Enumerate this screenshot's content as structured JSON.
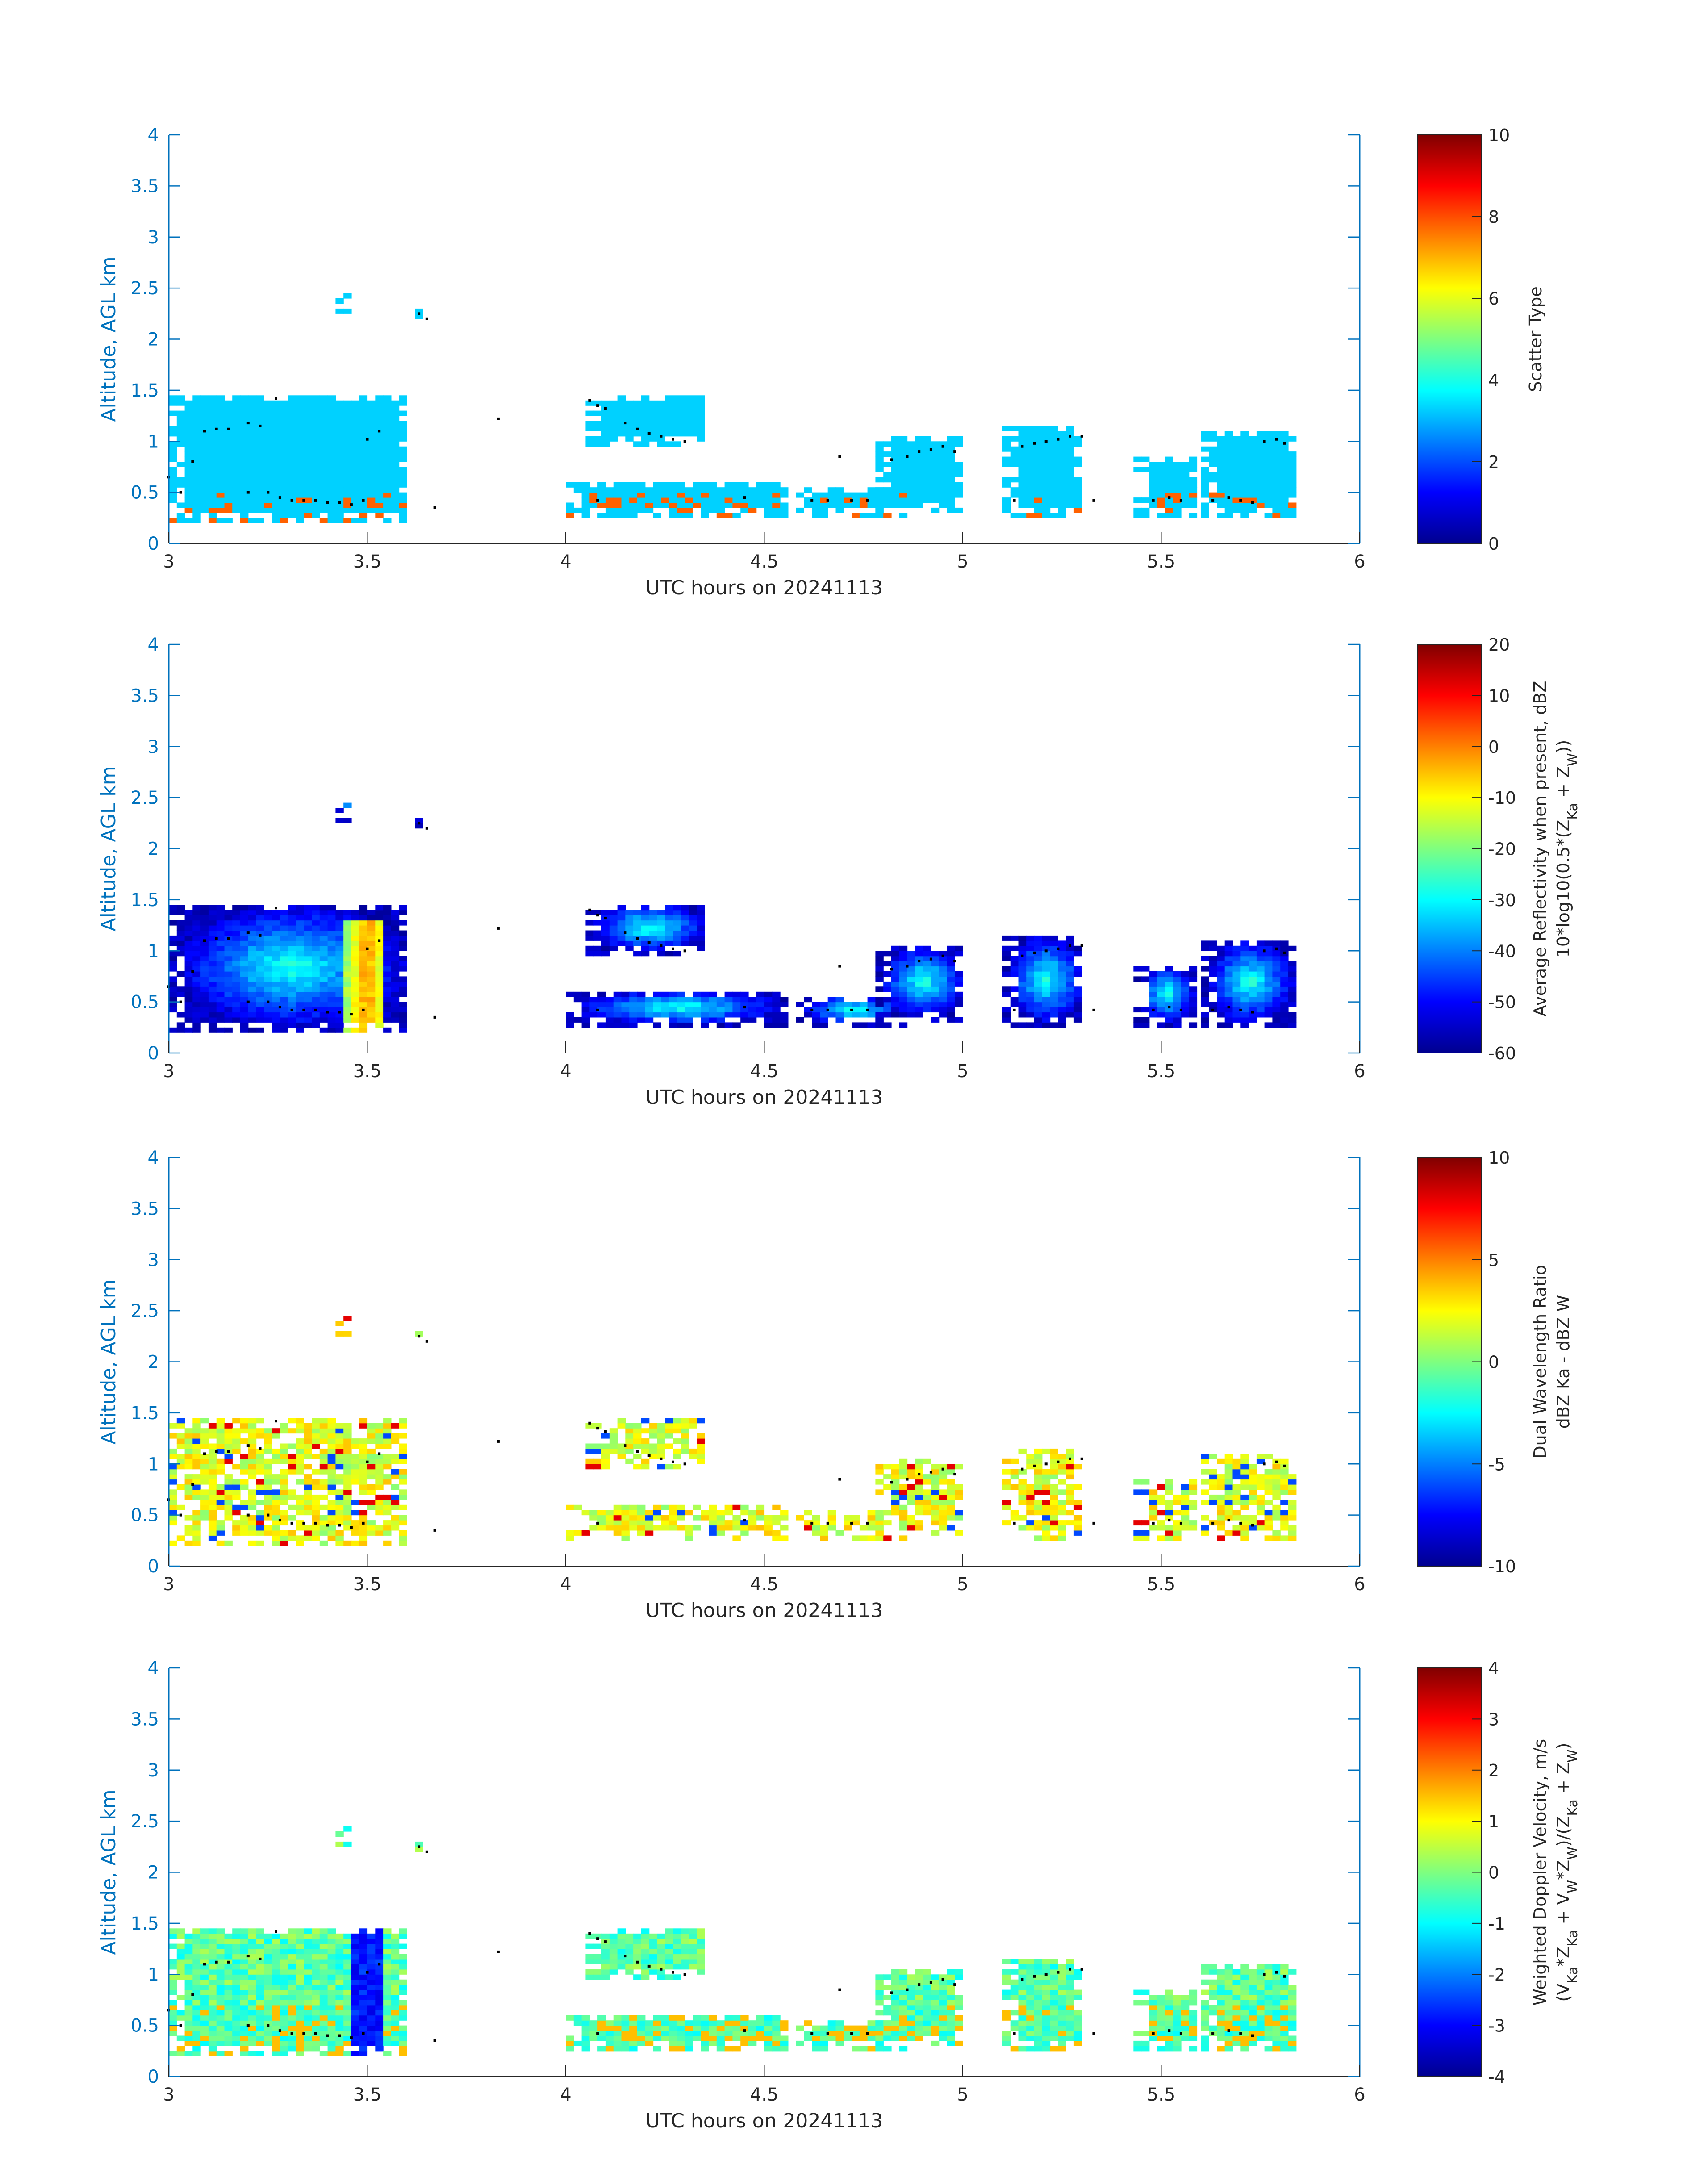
{
  "figure": {
    "panels": [
      {
        "id": "scatter-type",
        "ylabel": "Altitude, AGL km",
        "xlabel": "UTC hours on 20241113",
        "colorbar": {
          "label_lines": [
            "Scatter Type"
          ],
          "min": 0,
          "max": 10,
          "ticks": [
            0,
            2,
            4,
            6,
            8,
            10
          ]
        }
      },
      {
        "id": "reflectivity",
        "ylabel": "Altitude, AGL km",
        "xlabel": "UTC hours on 20241113",
        "colorbar": {
          "label_lines": [
            "Average Reflectivity when present, dBZ",
            "10*log10(0.5*(Z_Ka + Z_W))"
          ],
          "min": -60,
          "max": 20,
          "ticks": [
            -60,
            -50,
            -40,
            -30,
            -20,
            -10,
            0,
            10,
            20
          ]
        }
      },
      {
        "id": "dwr",
        "ylabel": "Altitude, AGL km",
        "xlabel": "UTC hours on 20241113",
        "colorbar": {
          "label_lines": [
            "Dual Wavelength Ratio",
            "dBZ Ka - dBZ W"
          ],
          "min": -10,
          "max": 10,
          "ticks": [
            -10,
            -5,
            0,
            5,
            10
          ]
        }
      },
      {
        "id": "doppler",
        "ylabel": "Altitude, AGL km",
        "xlabel": "UTC hours on 20241113",
        "colorbar": {
          "label_lines": [
            "Weighted Doppler Velocity, m/s",
            "(V_Ka*Z_Ka + V_W*Z_W)/(Z_Ka + Z_W)"
          ],
          "min": -4,
          "max": 4,
          "ticks": [
            -4,
            -3,
            -2,
            -1,
            0,
            1,
            2,
            3,
            4
          ]
        }
      }
    ]
  },
  "chart_data": {
    "type": "heatmap",
    "x": {
      "label": "UTC hours on 20241113",
      "range": [
        3,
        6
      ],
      "ticks": [
        3,
        3.5,
        4,
        4.5,
        5,
        5.5,
        6
      ]
    },
    "y": {
      "label": "Altitude, AGL km",
      "range": [
        0,
        4
      ],
      "ticks": [
        0,
        0.5,
        1,
        1.5,
        2,
        2.5,
        3,
        3.5,
        4
      ]
    },
    "colormap": "jet",
    "cloud_regions": [
      {
        "t0": 3.0,
        "t1": 3.6,
        "z0": 0.2,
        "z1": 1.45
      },
      {
        "t0": 3.42,
        "t1": 3.46,
        "z0": 2.25,
        "z1": 2.45
      },
      {
        "t0": 3.62,
        "t1": 3.66,
        "z0": 2.2,
        "z1": 2.3
      },
      {
        "t0": 4.05,
        "t1": 4.35,
        "z0": 0.95,
        "z1": 1.45
      },
      {
        "t0": 4.0,
        "t1": 4.55,
        "z0": 0.25,
        "z1": 0.6
      },
      {
        "t0": 4.58,
        "t1": 4.85,
        "z0": 0.25,
        "z1": 0.55
      },
      {
        "t0": 4.78,
        "t1": 5.0,
        "z0": 0.3,
        "z1": 1.05
      },
      {
        "t0": 5.1,
        "t1": 5.3,
        "z0": 0.25,
        "z1": 1.15
      },
      {
        "t0": 5.43,
        "t1": 5.58,
        "z0": 0.25,
        "z1": 0.85
      },
      {
        "t0": 5.6,
        "t1": 5.83,
        "z0": 0.25,
        "z1": 1.1
      }
    ],
    "cloud_base_dots": [
      {
        "t": 3.0,
        "z": 0.65
      },
      {
        "t": 3.03,
        "z": 0.5
      },
      {
        "t": 3.06,
        "z": 0.8
      },
      {
        "t": 3.09,
        "z": 1.1
      },
      {
        "t": 3.12,
        "z": 1.12
      },
      {
        "t": 3.15,
        "z": 1.12
      },
      {
        "t": 3.2,
        "z": 1.18
      },
      {
        "t": 3.23,
        "z": 1.15
      },
      {
        "t": 3.27,
        "z": 1.42
      },
      {
        "t": 3.2,
        "z": 0.5
      },
      {
        "t": 3.25,
        "z": 0.5
      },
      {
        "t": 3.28,
        "z": 0.45
      },
      {
        "t": 3.31,
        "z": 0.42
      },
      {
        "t": 3.34,
        "z": 0.42
      },
      {
        "t": 3.37,
        "z": 0.42
      },
      {
        "t": 3.4,
        "z": 0.4
      },
      {
        "t": 3.43,
        "z": 0.4
      },
      {
        "t": 3.46,
        "z": 0.38
      },
      {
        "t": 3.49,
        "z": 0.42
      },
      {
        "t": 3.5,
        "z": 1.02
      },
      {
        "t": 3.53,
        "z": 1.1
      },
      {
        "t": 3.63,
        "z": 2.25
      },
      {
        "t": 3.65,
        "z": 2.2
      },
      {
        "t": 3.67,
        "z": 0.35
      },
      {
        "t": 3.83,
        "z": 1.22
      },
      {
        "t": 4.06,
        "z": 1.4
      },
      {
        "t": 4.08,
        "z": 1.35
      },
      {
        "t": 4.1,
        "z": 1.32
      },
      {
        "t": 4.15,
        "z": 1.18
      },
      {
        "t": 4.18,
        "z": 1.12
      },
      {
        "t": 4.21,
        "z": 1.08
      },
      {
        "t": 4.24,
        "z": 1.05
      },
      {
        "t": 4.27,
        "z": 1.02
      },
      {
        "t": 4.3,
        "z": 1.0
      },
      {
        "t": 4.08,
        "z": 0.42
      },
      {
        "t": 4.45,
        "z": 0.45
      },
      {
        "t": 4.62,
        "z": 0.42
      },
      {
        "t": 4.66,
        "z": 0.42
      },
      {
        "t": 4.69,
        "z": 0.85
      },
      {
        "t": 4.72,
        "z": 0.42
      },
      {
        "t": 4.76,
        "z": 0.42
      },
      {
        "t": 4.82,
        "z": 0.82
      },
      {
        "t": 4.86,
        "z": 0.85
      },
      {
        "t": 4.89,
        "z": 0.9
      },
      {
        "t": 4.92,
        "z": 0.92
      },
      {
        "t": 4.95,
        "z": 0.95
      },
      {
        "t": 4.98,
        "z": 0.9
      },
      {
        "t": 5.13,
        "z": 0.42
      },
      {
        "t": 5.15,
        "z": 0.95
      },
      {
        "t": 5.18,
        "z": 0.98
      },
      {
        "t": 5.21,
        "z": 1.0
      },
      {
        "t": 5.24,
        "z": 1.02
      },
      {
        "t": 5.27,
        "z": 1.05
      },
      {
        "t": 5.3,
        "z": 1.05
      },
      {
        "t": 5.33,
        "z": 0.42
      },
      {
        "t": 5.48,
        "z": 0.42
      },
      {
        "t": 5.52,
        "z": 0.45
      },
      {
        "t": 5.55,
        "z": 0.42
      },
      {
        "t": 5.63,
        "z": 0.42
      },
      {
        "t": 5.67,
        "z": 0.45
      },
      {
        "t": 5.7,
        "z": 0.42
      },
      {
        "t": 5.73,
        "z": 0.4
      },
      {
        "t": 5.76,
        "z": 1.0
      },
      {
        "t": 5.79,
        "z": 1.02
      },
      {
        "t": 5.81,
        "z": 0.98
      }
    ]
  }
}
